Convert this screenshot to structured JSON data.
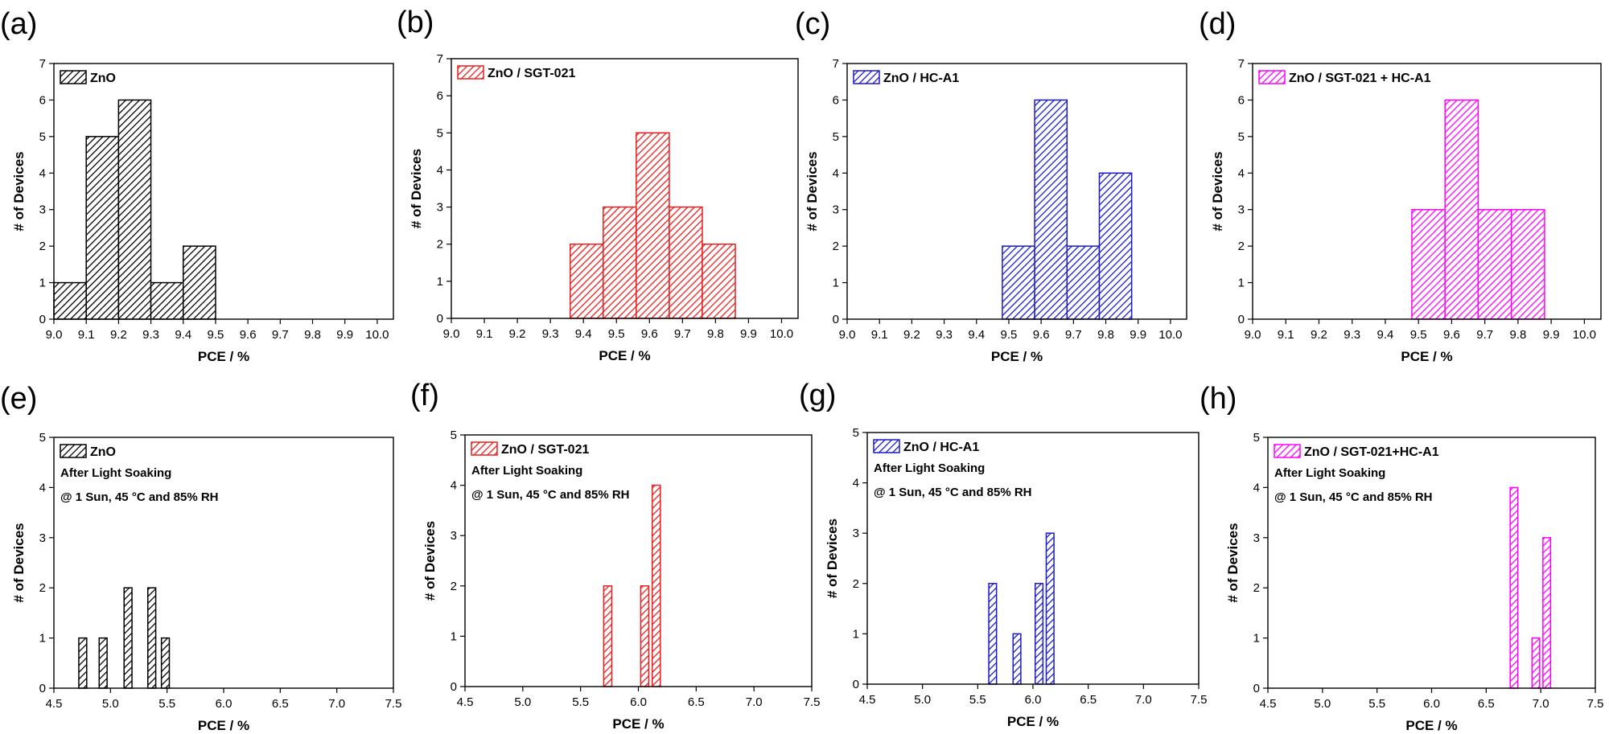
{
  "figure": {
    "description_title": ""
  },
  "chart_data": [
    {
      "panel": "(a)",
      "type": "bar",
      "legend": "ZnO",
      "color": "#000000",
      "annotations": [],
      "xlabel": "PCE / %",
      "ylabel": "# of Devices",
      "xlim": [
        9.0,
        10.05
      ],
      "ylim": [
        0,
        7
      ],
      "xticks": [
        "9.0",
        "9.1",
        "9.2",
        "9.3",
        "9.4",
        "9.5",
        "9.6",
        "9.7",
        "9.8",
        "9.9",
        "10.0"
      ],
      "xtick_values": [
        9.0,
        9.1,
        9.2,
        9.3,
        9.4,
        9.5,
        9.6,
        9.7,
        9.8,
        9.9,
        10.0
      ],
      "yticks": [
        "0",
        "1",
        "2",
        "3",
        "4",
        "5",
        "6",
        "7"
      ],
      "bin_width": 0.1,
      "bins": [
        {
          "x": 9.0,
          "count": 1
        },
        {
          "x": 9.1,
          "count": 5
        },
        {
          "x": 9.2,
          "count": 6
        },
        {
          "x": 9.3,
          "count": 1
        },
        {
          "x": 9.4,
          "count": 2
        }
      ]
    },
    {
      "panel": "(b)",
      "type": "bar",
      "legend": "ZnO / SGT-021",
      "color": "#ee1c1c",
      "annotations": [],
      "xlabel": "PCE / %",
      "ylabel": "# of Devices",
      "xlim": [
        9.0,
        10.05
      ],
      "ylim": [
        0,
        7
      ],
      "xticks": [
        "9.0",
        "9.1",
        "9.2",
        "9.3",
        "9.4",
        "9.5",
        "9.6",
        "9.7",
        "9.8",
        "9.9",
        "10.0"
      ],
      "xtick_values": [
        9.0,
        9.1,
        9.2,
        9.3,
        9.4,
        9.5,
        9.6,
        9.7,
        9.8,
        9.9,
        10.0
      ],
      "yticks": [
        "0",
        "1",
        "2",
        "3",
        "4",
        "5",
        "6",
        "7"
      ],
      "bin_width": 0.1,
      "bins": [
        {
          "x": 9.36,
          "count": 2
        },
        {
          "x": 9.46,
          "count": 3
        },
        {
          "x": 9.56,
          "count": 5
        },
        {
          "x": 9.66,
          "count": 3
        },
        {
          "x": 9.76,
          "count": 2
        }
      ]
    },
    {
      "panel": "(c)",
      "type": "bar",
      "legend": "ZnO / HC-A1",
      "color": "#1a1acd",
      "annotations": [],
      "xlabel": "PCE / %",
      "ylabel": "# of Devices",
      "xlim": [
        9.0,
        10.05
      ],
      "ylim": [
        0,
        7
      ],
      "xticks": [
        "9.0",
        "9.1",
        "9.2",
        "9.3",
        "9.4",
        "9.5",
        "9.6",
        "9.7",
        "9.8",
        "9.9",
        "10.0"
      ],
      "xtick_values": [
        9.0,
        9.1,
        9.2,
        9.3,
        9.4,
        9.5,
        9.6,
        9.7,
        9.8,
        9.9,
        10.0
      ],
      "yticks": [
        "0",
        "1",
        "2",
        "3",
        "4",
        "5",
        "6",
        "7"
      ],
      "bin_width": 0.1,
      "bins": [
        {
          "x": 9.48,
          "count": 2
        },
        {
          "x": 9.58,
          "count": 6
        },
        {
          "x": 9.68,
          "count": 2
        },
        {
          "x": 9.78,
          "count": 4
        }
      ]
    },
    {
      "panel": "(d)",
      "type": "bar",
      "legend": "ZnO / SGT-021 + HC-A1",
      "color": "#ff00ff",
      "annotations": [],
      "xlabel": "PCE / %",
      "ylabel": "# of Devices",
      "xlim": [
        9.0,
        10.05
      ],
      "ylim": [
        0,
        7
      ],
      "xticks": [
        "9.0",
        "9.1",
        "9.2",
        "9.3",
        "9.4",
        "9.5",
        "9.6",
        "9.7",
        "9.8",
        "9.9",
        "10.0"
      ],
      "xtick_values": [
        9.0,
        9.1,
        9.2,
        9.3,
        9.4,
        9.5,
        9.6,
        9.7,
        9.8,
        9.9,
        10.0
      ],
      "yticks": [
        "0",
        "1",
        "2",
        "3",
        "4",
        "5",
        "6",
        "7"
      ],
      "bin_width": 0.1,
      "bins": [
        {
          "x": 9.48,
          "count": 3
        },
        {
          "x": 9.58,
          "count": 6
        },
        {
          "x": 9.68,
          "count": 3
        },
        {
          "x": 9.78,
          "count": 3
        }
      ]
    },
    {
      "panel": "(e)",
      "type": "bar",
      "legend": "ZnO",
      "color": "#000000",
      "annotations": [
        "After Light Soaking",
        "@ 1 Sun, 45 °C and  85% RH"
      ],
      "xlabel": "PCE / %",
      "ylabel": "# of Devices",
      "xlim": [
        4.5,
        7.5
      ],
      "ylim": [
        0,
        5
      ],
      "xticks": [
        "4.5",
        "5.0",
        "5.5",
        "6.0",
        "6.5",
        "7.0",
        "7.5"
      ],
      "xtick_values": [
        4.5,
        5.0,
        5.5,
        6.0,
        6.5,
        7.0,
        7.5
      ],
      "yticks": [
        "0",
        "1",
        "2",
        "3",
        "4",
        "5"
      ],
      "bin_width": 0.07,
      "bins": [
        {
          "x": 4.72,
          "count": 1
        },
        {
          "x": 4.9,
          "count": 1
        },
        {
          "x": 5.12,
          "count": 2
        },
        {
          "x": 5.33,
          "count": 2
        },
        {
          "x": 5.45,
          "count": 1
        }
      ]
    },
    {
      "panel": "(f)",
      "type": "bar",
      "legend": "ZnO / SGT-021",
      "color": "#ee1c1c",
      "annotations": [
        "After Light Soaking",
        "@ 1 Sun, 45 °C and  85% RH"
      ],
      "xlabel": "PCE / %",
      "ylabel": "# of Devices",
      "xlim": [
        4.5,
        7.5
      ],
      "ylim": [
        0,
        5
      ],
      "xticks": [
        "4.5",
        "5.0",
        "5.5",
        "6.0",
        "6.5",
        "7.0",
        "7.5"
      ],
      "xtick_values": [
        4.5,
        5.0,
        5.5,
        6.0,
        6.5,
        7.0,
        7.5
      ],
      "yticks": [
        "0",
        "1",
        "2",
        "3",
        "4",
        "5"
      ],
      "bin_width": 0.07,
      "bins": [
        {
          "x": 5.7,
          "count": 2
        },
        {
          "x": 6.02,
          "count": 2
        },
        {
          "x": 6.12,
          "count": 4
        }
      ]
    },
    {
      "panel": "(g)",
      "type": "bar",
      "legend": "ZnO / HC-A1",
      "color": "#1a1acd",
      "annotations": [
        "After Light Soaking",
        "@ 1 Sun, 45 °C and  85% RH"
      ],
      "xlabel": "PCE / %",
      "ylabel": "# of Devices",
      "xlim": [
        4.5,
        7.5
      ],
      "ylim": [
        0,
        5
      ],
      "xticks": [
        "4.5",
        "5.0",
        "5.5",
        "6.0",
        "6.5",
        "7.0",
        "7.5"
      ],
      "xtick_values": [
        4.5,
        5.0,
        5.5,
        6.0,
        6.5,
        7.0,
        7.5
      ],
      "yticks": [
        "0",
        "1",
        "2",
        "3",
        "4",
        "5"
      ],
      "bin_width": 0.07,
      "bins": [
        {
          "x": 5.6,
          "count": 2
        },
        {
          "x": 5.82,
          "count": 1
        },
        {
          "x": 6.02,
          "count": 2
        },
        {
          "x": 6.12,
          "count": 3
        }
      ]
    },
    {
      "panel": "(h)",
      "type": "bar",
      "legend": "ZnO / SGT-021+HC-A1",
      "color": "#ff00ff",
      "annotations": [
        "After Light Soaking",
        "@ 1 Sun, 45 °C and  85% RH"
      ],
      "xlabel": "PCE / %",
      "ylabel": "# of Devices",
      "xlim": [
        4.5,
        7.5
      ],
      "ylim": [
        0,
        5
      ],
      "xticks": [
        "4.5",
        "5.0",
        "5.5",
        "6.0",
        "6.5",
        "7.0",
        "7.5"
      ],
      "xtick_values": [
        4.5,
        5.0,
        5.5,
        6.0,
        6.5,
        7.0,
        7.5
      ],
      "yticks": [
        "0",
        "1",
        "2",
        "3",
        "4",
        "5"
      ],
      "bin_width": 0.07,
      "bins": [
        {
          "x": 6.72,
          "count": 4
        },
        {
          "x": 6.92,
          "count": 1
        },
        {
          "x": 7.02,
          "count": 3
        }
      ]
    }
  ]
}
